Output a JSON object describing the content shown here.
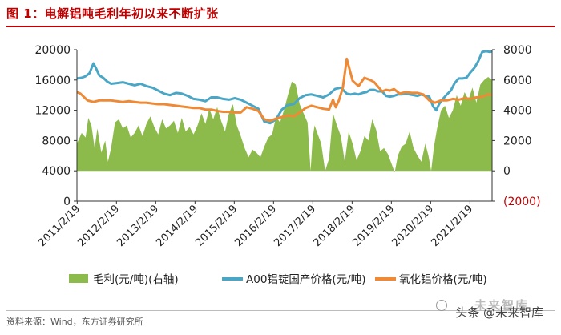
{
  "figure": {
    "title": "图 1：电解铝吨毛利年初以来不断扩张",
    "source": "资料来源：Wind，东方证券研究所",
    "watermark_brand": "未来智库",
    "watermark_line": "头条 @未来智库"
  },
  "colors": {
    "profit": "#8dbb4b",
    "a00": "#4aa6c4",
    "alumina": "#ee8a35",
    "negative_tick": "#c00000",
    "title": "#c00000"
  },
  "chart_data": {
    "type": "area",
    "title": "",
    "xlabel": "",
    "ylabel": "",
    "x_ticks": [
      "2011/2/19",
      "2012/2/19",
      "2013/2/19",
      "2014/2/19",
      "2015/2/19",
      "2016/2/19",
      "2017/2/19",
      "2018/2/19",
      "2019/2/19",
      "2020/2/19",
      "2021/2/19"
    ],
    "left_axis": {
      "ticks": [
        "20000",
        "16000",
        "12000",
        "8000",
        "4000",
        "0"
      ],
      "range": [
        0,
        20000
      ]
    },
    "right_axis": {
      "ticks": [
        "8000",
        "6000",
        "4000",
        "2000",
        "0",
        "(2000)"
      ],
      "range": [
        -2000,
        8000
      ]
    },
    "x_range": [
      2011.13,
      2021.7
    ],
    "legend": [
      "毛利(元/吨)(右轴)",
      "A00铝锭国产价格(元/吨)",
      "氧化铝价格(元/吨)"
    ],
    "legend_position": "bottom",
    "grid": false,
    "series": [
      {
        "name": "毛利(元/吨)(右轴)",
        "axis": "right",
        "type": "area",
        "x": [
          2011.13,
          2011.25,
          2011.35,
          2011.42,
          2011.5,
          2011.58,
          2011.65,
          2011.75,
          2011.85,
          2011.92,
          2012.0,
          2012.1,
          2012.2,
          2012.3,
          2012.4,
          2012.5,
          2012.6,
          2012.7,
          2012.8,
          2012.9,
          2013.0,
          2013.1,
          2013.2,
          2013.3,
          2013.4,
          2013.5,
          2013.6,
          2013.7,
          2013.8,
          2013.9,
          2014.0,
          2014.1,
          2014.2,
          2014.3,
          2014.4,
          2014.5,
          2014.6,
          2014.7,
          2014.8,
          2014.9,
          2015.0,
          2015.1,
          2015.2,
          2015.3,
          2015.4,
          2015.5,
          2015.6,
          2015.7,
          2015.8,
          2015.9,
          2016.0,
          2016.1,
          2016.2,
          2016.3,
          2016.4,
          2016.5,
          2016.6,
          2016.7,
          2016.8,
          2016.9,
          2017.0,
          2017.08,
          2017.13,
          2017.18,
          2017.25,
          2017.35,
          2017.45,
          2017.55,
          2017.65,
          2017.75,
          2017.85,
          2017.95,
          2018.05,
          2018.15,
          2018.25,
          2018.35,
          2018.45,
          2018.55,
          2018.65,
          2018.75,
          2018.85,
          2018.95,
          2019.05,
          2019.15,
          2019.22,
          2019.3,
          2019.4,
          2019.5,
          2019.6,
          2019.7,
          2019.8,
          2019.9,
          2020.0,
          2020.08,
          2020.15,
          2020.22,
          2020.3,
          2020.4,
          2020.5,
          2020.6,
          2020.7,
          2020.8,
          2020.9,
          2021.0,
          2021.1,
          2021.2,
          2021.3,
          2021.4,
          2021.5,
          2021.6,
          2021.7
        ],
        "values": [
          1800,
          2500,
          2200,
          3500,
          3000,
          1500,
          2800,
          1200,
          2000,
          600,
          1500,
          3200,
          3400,
          2800,
          3000,
          2200,
          2500,
          3000,
          2300,
          3100,
          3600,
          2900,
          2400,
          3400,
          2800,
          3000,
          3300,
          2500,
          3500,
          2600,
          2900,
          2400,
          3000,
          3800,
          3100,
          4100,
          3400,
          4200,
          3300,
          2600,
          3800,
          4400,
          3000,
          2300,
          1500,
          900,
          1400,
          1200,
          900,
          1600,
          2200,
          2400,
          3600,
          3200,
          4000,
          5000,
          5900,
          5700,
          4400,
          3800,
          3200,
          0,
          2100,
          3000,
          2500,
          1800,
          0,
          800,
          3800,
          3000,
          2300,
          600,
          2600,
          1800,
          700,
          1300,
          2300,
          2000,
          3400,
          2700,
          1300,
          1500,
          1100,
          400,
          -100,
          1000,
          1600,
          1800,
          2600,
          1500,
          1000,
          600,
          1800,
          1000,
          0,
          1600,
          2800,
          4000,
          4300,
          3500,
          4000,
          5000,
          4300,
          5200,
          4700,
          5500,
          4500,
          5700,
          6000,
          6200,
          6000
        ]
      },
      {
        "name": "A00铝锭国产价格(元/吨)",
        "axis": "left",
        "type": "line",
        "x": [
          2011.13,
          2011.25,
          2011.35,
          2011.45,
          2011.55,
          2011.62,
          2011.7,
          2011.8,
          2011.9,
          2012.0,
          2012.15,
          2012.3,
          2012.45,
          2012.6,
          2012.75,
          2012.9,
          2013.05,
          2013.2,
          2013.35,
          2013.5,
          2013.65,
          2013.8,
          2013.95,
          2014.1,
          2014.25,
          2014.4,
          2014.55,
          2014.7,
          2014.85,
          2015.0,
          2015.15,
          2015.3,
          2015.45,
          2015.6,
          2015.75,
          2015.9,
          2016.05,
          2016.2,
          2016.35,
          2016.5,
          2016.65,
          2016.8,
          2016.95,
          2017.1,
          2017.25,
          2017.4,
          2017.55,
          2017.7,
          2017.85,
          2018.0,
          2018.1,
          2018.2,
          2018.3,
          2018.4,
          2018.5,
          2018.6,
          2018.7,
          2018.8,
          2018.9,
          2019.0,
          2019.1,
          2019.2,
          2019.3,
          2019.4,
          2019.5,
          2019.6,
          2019.7,
          2019.8,
          2019.9,
          2020.0,
          2020.1,
          2020.2,
          2020.28,
          2020.35,
          2020.45,
          2020.55,
          2020.65,
          2020.75,
          2020.85,
          2020.95,
          2021.05,
          2021.15,
          2021.25,
          2021.35,
          2021.45,
          2021.55,
          2021.65,
          2021.7
        ],
        "values": [
          16200,
          16300,
          16500,
          16900,
          18200,
          17500,
          16600,
          16300,
          15800,
          15500,
          15600,
          15700,
          15500,
          15300,
          15500,
          15200,
          15000,
          14600,
          14200,
          14000,
          14300,
          14200,
          13900,
          13500,
          13400,
          13200,
          13700,
          13700,
          13500,
          13400,
          13600,
          13400,
          13000,
          12600,
          12200,
          10500,
          10300,
          10800,
          12100,
          12700,
          12800,
          13600,
          14000,
          14100,
          13900,
          13700,
          14100,
          14800,
          15000,
          14200,
          14100,
          14200,
          14100,
          14300,
          14400,
          14700,
          14700,
          14500,
          14500,
          13900,
          13800,
          13900,
          14100,
          14100,
          14200,
          14100,
          14000,
          13900,
          14100,
          13900,
          13800,
          12500,
          12000,
          12800,
          13500,
          14100,
          14600,
          15600,
          16200,
          16200,
          16300,
          17000,
          17600,
          18500,
          19700,
          19800,
          19700,
          19800
        ]
      },
      {
        "name": "氧化铝价格(元/吨)",
        "axis": "left",
        "type": "line",
        "x": [
          2011.13,
          2011.22,
          2011.3,
          2011.4,
          2011.55,
          2011.7,
          2011.85,
          2012.0,
          2012.15,
          2012.3,
          2012.45,
          2012.6,
          2012.75,
          2012.9,
          2013.05,
          2013.2,
          2013.35,
          2013.5,
          2013.65,
          2013.8,
          2013.95,
          2014.1,
          2014.25,
          2014.4,
          2014.55,
          2014.7,
          2014.85,
          2015.0,
          2015.15,
          2015.3,
          2015.45,
          2015.6,
          2015.75,
          2015.9,
          2016.05,
          2016.2,
          2016.35,
          2016.5,
          2016.65,
          2016.8,
          2016.95,
          2017.1,
          2017.25,
          2017.4,
          2017.55,
          2017.65,
          2017.72,
          2017.8,
          2017.9,
          2018.0,
          2018.15,
          2018.3,
          2018.45,
          2018.6,
          2018.7,
          2018.8,
          2018.9,
          2019.0,
          2019.1,
          2019.2,
          2019.35,
          2019.5,
          2019.65,
          2019.8,
          2019.95,
          2020.1,
          2020.25,
          2020.4,
          2020.55,
          2020.7,
          2020.85,
          2021.0,
          2021.15,
          2021.3,
          2021.45,
          2021.6,
          2021.7
        ],
        "values": [
          14400,
          14200,
          13800,
          13300,
          13100,
          13300,
          13300,
          13300,
          13200,
          13100,
          13200,
          13100,
          13000,
          13000,
          12900,
          12800,
          12800,
          12700,
          12600,
          12500,
          12400,
          12300,
          12300,
          12100,
          12100,
          11900,
          11800,
          11800,
          11700,
          11700,
          12400,
          12200,
          11900,
          10800,
          10600,
          10900,
          11100,
          11300,
          11200,
          11700,
          12300,
          12600,
          12400,
          12200,
          12100,
          13400,
          12400,
          13300,
          15000,
          18800,
          15900,
          15200,
          16300,
          16000,
          15700,
          15100,
          14500,
          14700,
          14600,
          14800,
          14200,
          14400,
          14300,
          14300,
          14100,
          13300,
          13000,
          13300,
          13300,
          13500,
          13400,
          13600,
          13500,
          13700,
          13800,
          14100,
          14000
        ]
      }
    ]
  }
}
